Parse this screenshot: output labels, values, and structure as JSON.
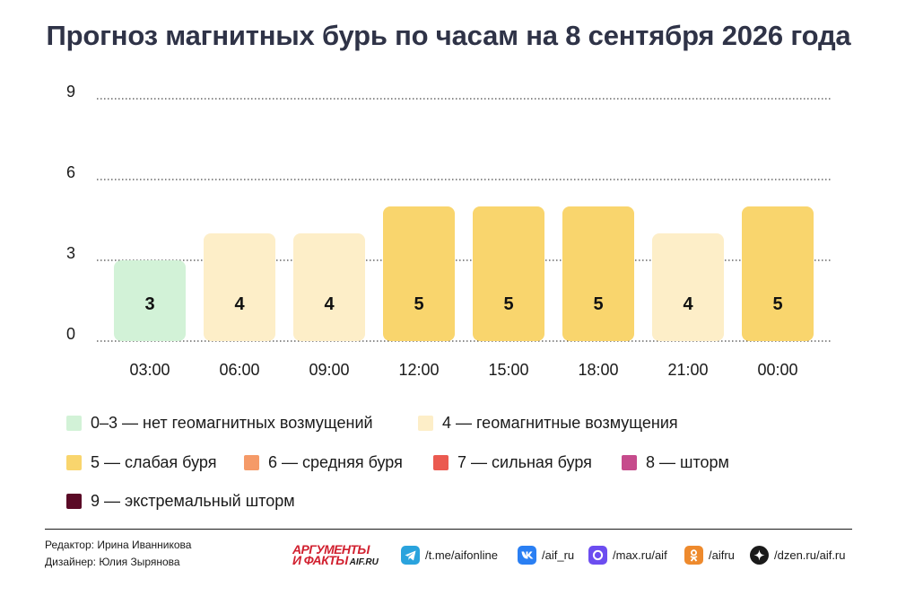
{
  "title": "Прогноз магнитных бурь по часам на 8 сентября 2026 года",
  "chart_data": {
    "type": "bar",
    "categories": [
      "03:00",
      "06:00",
      "09:00",
      "12:00",
      "15:00",
      "18:00",
      "21:00",
      "00:00"
    ],
    "values": [
      3,
      4,
      4,
      5,
      5,
      5,
      4,
      5
    ],
    "yticks": [
      0,
      3,
      6,
      9
    ],
    "ylim": [
      0,
      9
    ],
    "grid": "horizontal-dotted",
    "bar_colors": [
      "#d2f2d7",
      "#fdeec8",
      "#fdeec8",
      "#f9d56d",
      "#f9d56d",
      "#f9d56d",
      "#fdeec8",
      "#f9d56d"
    ]
  },
  "legend": [
    {
      "label": "0–3 — нет геомагнитных возмущений",
      "color": "#d2f2d7"
    },
    {
      "label": "4 — геомагнитные возмущения",
      "color": "#fdeec8"
    },
    {
      "label": "5 — слабая буря",
      "color": "#f9d56d"
    },
    {
      "label": "6 — средняя буря",
      "color": "#f59a68"
    },
    {
      "label": "7 — сильная буря",
      "color": "#eb5a50"
    },
    {
      "label": "8 — шторм",
      "color": "#c64b8c"
    },
    {
      "label": "9 — экстремальный шторм",
      "color": "#5a0a26"
    }
  ],
  "footer": {
    "editor": "Редактор: Ирина Иванникова",
    "designer": "Дизайнер: Юлия Зырянова",
    "logo": {
      "line1": "АРГУМЕНТЫ",
      "line2": "И ФАКТЫ",
      "domain": "AIF.RU"
    },
    "social": [
      {
        "icon": "telegram-icon",
        "label": "/t.me/aifonline",
        "color": "#2aa3dd"
      },
      {
        "icon": "vk-icon",
        "label": "/aif_ru",
        "color": "#2a7ff3"
      },
      {
        "icon": "max-icon",
        "label": "/max.ru/aif",
        "color": "#6c4df0"
      },
      {
        "icon": "odnoklassniki-icon",
        "label": "/aifru",
        "color": "#ee8a2d"
      },
      {
        "icon": "dzen-icon",
        "label": "/dzen.ru/aif.ru",
        "color": "#1a1a1a"
      }
    ]
  }
}
